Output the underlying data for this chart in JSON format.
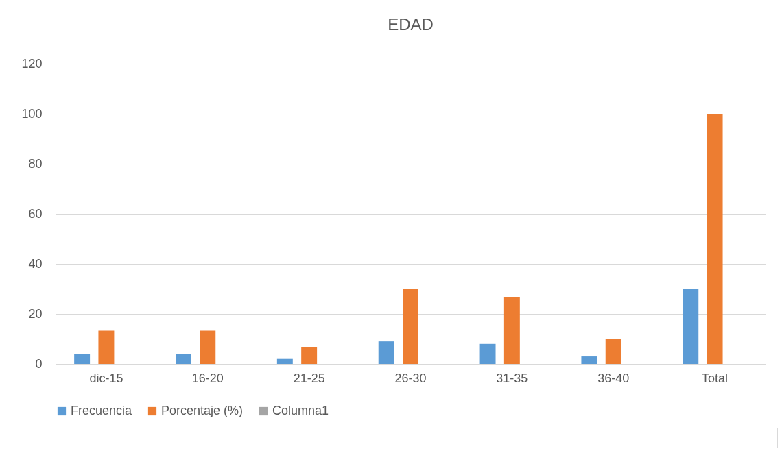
{
  "chart_data": {
    "type": "bar",
    "title": "EDAD",
    "categories": [
      "dic-15",
      "16-20",
      "21-25",
      "26-30",
      "31-35",
      "36-40",
      "Total"
    ],
    "series": [
      {
        "name": "Frecuencia",
        "color": "#5b9bd5",
        "values": [
          4,
          4,
          2,
          9,
          8,
          3,
          30
        ]
      },
      {
        "name": "Porcentaje (%)",
        "color": "#ed7d31",
        "values": [
          13.3,
          13.3,
          6.7,
          30,
          26.7,
          10,
          100
        ]
      },
      {
        "name": "Columna1",
        "color": "#a5a5a5",
        "values": [
          null,
          null,
          null,
          null,
          null,
          null,
          null
        ]
      }
    ],
    "ylim": [
      0,
      120
    ],
    "yticks": [
      0,
      20,
      40,
      60,
      80,
      100,
      120
    ],
    "grid": "y",
    "legend": "bottom"
  }
}
